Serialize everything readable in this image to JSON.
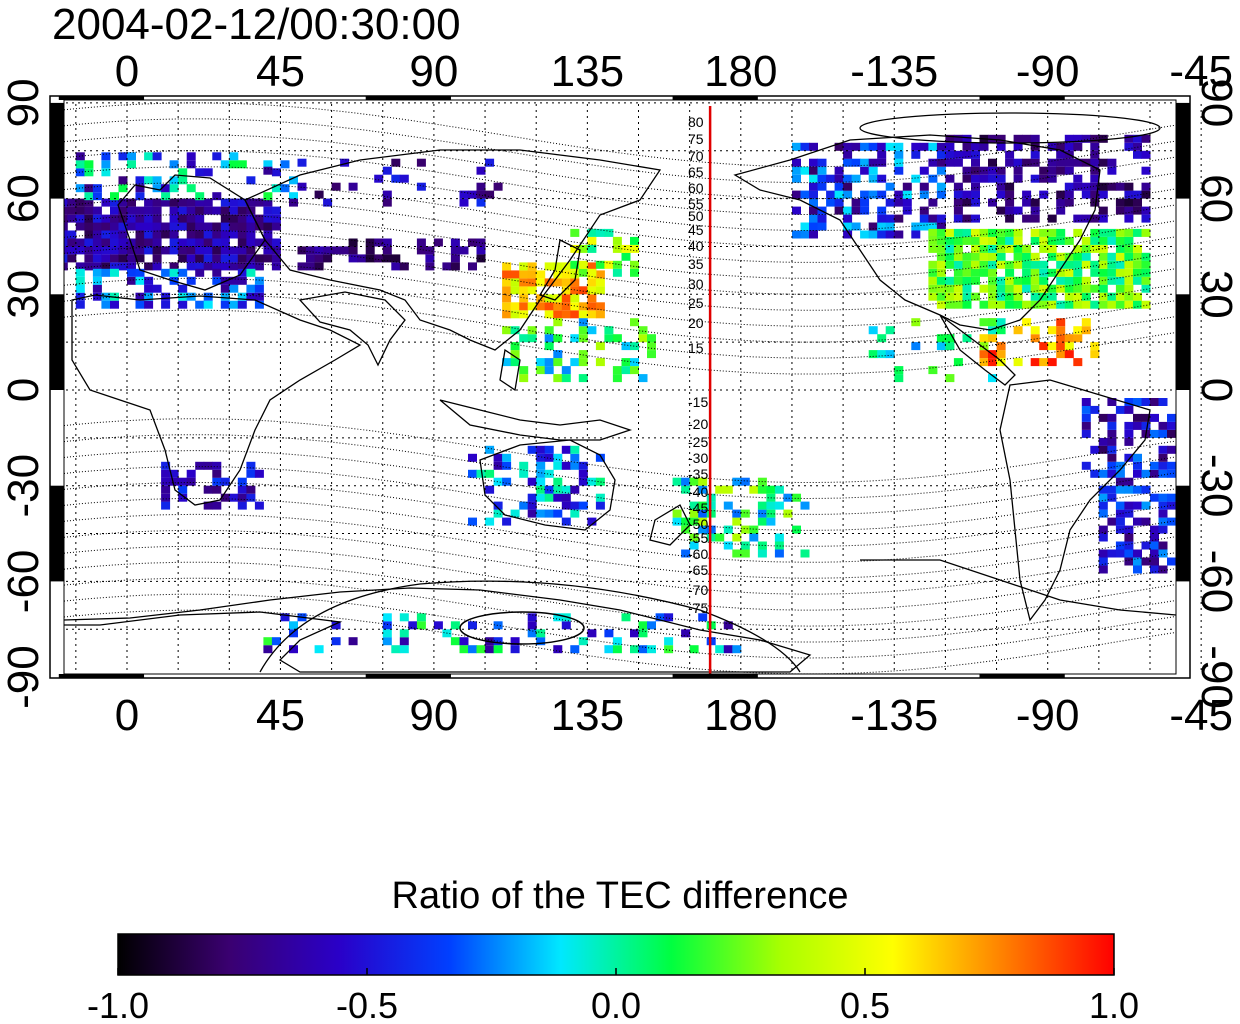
{
  "timestamp": "2004-02-12/00:30:00",
  "axes": {
    "top_lon_labels": [
      "0",
      "45",
      "90",
      "135",
      "180",
      "-135",
      "-90",
      "-45"
    ],
    "bottom_lon_labels": [
      "0",
      "45",
      "90",
      "135",
      "180",
      "-135",
      "-90",
      "-45"
    ],
    "left_lat_labels": [
      "90",
      "60",
      "30",
      "0",
      "-30",
      "-60",
      "-90"
    ],
    "right_lat_labels": [
      "90",
      "60",
      "30",
      "0",
      "-30",
      "-60",
      "-90"
    ],
    "lon_range": [
      -20,
      320
    ],
    "lat_range": [
      -90,
      90
    ],
    "grid": "dotted every 15 degrees"
  },
  "reference_meridian": {
    "lon": 171,
    "color": "#e00000"
  },
  "contour_labels_north": [
    "80",
    "75",
    "70",
    "65",
    "60",
    "55",
    "50",
    "45",
    "40",
    "35",
    "30",
    "25",
    "20",
    "15"
  ],
  "contour_labels_south": [
    "-15",
    "-20",
    "-25",
    "-30",
    "-35",
    "-40",
    "-45",
    "-50",
    "-55",
    "-60",
    "-65",
    "-70",
    "-75"
  ],
  "colorbar": {
    "title": "Ratio of the TEC difference",
    "min": -1.0,
    "max": 1.0,
    "tick_labels": [
      "-1.0",
      "-0.5",
      "0.0",
      "0.5",
      "1.0"
    ],
    "colormap": [
      "#000000",
      "#3a0070",
      "#2a00c8",
      "#0040ff",
      "#00e8ff",
      "#00ff40",
      "#aaff00",
      "#ffff00",
      "#ff8000",
      "#ff0000"
    ]
  }
}
